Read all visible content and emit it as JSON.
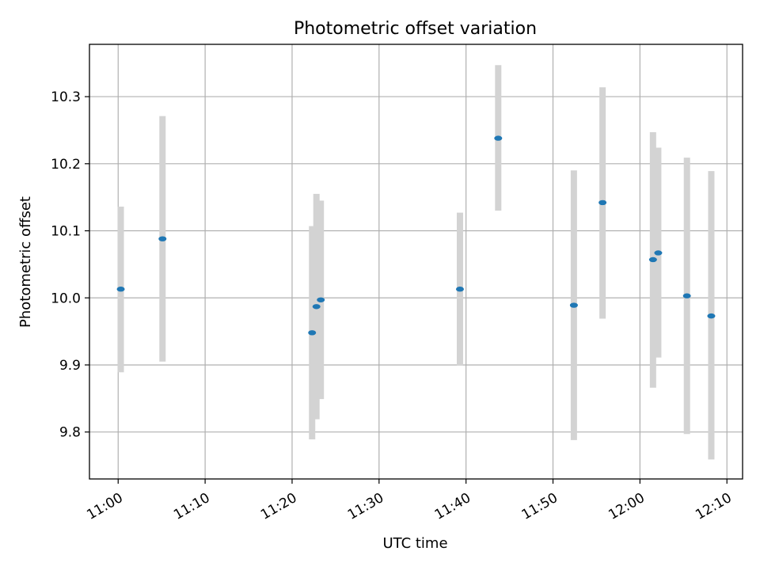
{
  "chart_data": {
    "type": "scatter",
    "title": "Photometric offset variation",
    "xlabel": "UTC time",
    "ylabel": "Photometric offset",
    "x_ticks": [
      "11:00",
      "11:10",
      "11:20",
      "11:30",
      "11:40",
      "11:50",
      "12:00",
      "12:10"
    ],
    "y_ticks": [
      "9.8",
      "9.9",
      "10.0",
      "10.1",
      "10.2",
      "10.3"
    ],
    "xlim": [
      "10:56:42",
      "12:11:48"
    ],
    "ylim": [
      9.73,
      10.378
    ],
    "grid": true,
    "legend": "none",
    "point_color": "#1f77b4",
    "errorbar_color": "#d3d3d3",
    "points": [
      {
        "x": "11:00:18",
        "y": 10.013,
        "ylow": 9.889,
        "yhigh": 10.136
      },
      {
        "x": "11:05:06",
        "y": 10.088,
        "ylow": 9.905,
        "yhigh": 10.271
      },
      {
        "x": "11:22:18",
        "y": 9.948,
        "ylow": 9.789,
        "yhigh": 10.107
      },
      {
        "x": "11:22:48",
        "y": 9.987,
        "ylow": 9.819,
        "yhigh": 10.155
      },
      {
        "x": "11:23:18",
        "y": 9.997,
        "ylow": 9.849,
        "yhigh": 10.145
      },
      {
        "x": "11:39:18",
        "y": 10.013,
        "ylow": 9.899,
        "yhigh": 10.127
      },
      {
        "x": "11:43:42",
        "y": 10.238,
        "ylow": 10.13,
        "yhigh": 10.347
      },
      {
        "x": "11:52:24",
        "y": 9.989,
        "ylow": 9.788,
        "yhigh": 10.19
      },
      {
        "x": "11:55:42",
        "y": 10.142,
        "ylow": 9.969,
        "yhigh": 10.314
      },
      {
        "x": "12:01:30",
        "y": 10.057,
        "ylow": 9.866,
        "yhigh": 10.247
      },
      {
        "x": "12:02:06",
        "y": 10.067,
        "ylow": 9.911,
        "yhigh": 10.224
      },
      {
        "x": "12:05:24",
        "y": 10.003,
        "ylow": 9.797,
        "yhigh": 10.209
      },
      {
        "x": "12:08:12",
        "y": 9.973,
        "ylow": 9.759,
        "yhigh": 10.189
      }
    ]
  }
}
